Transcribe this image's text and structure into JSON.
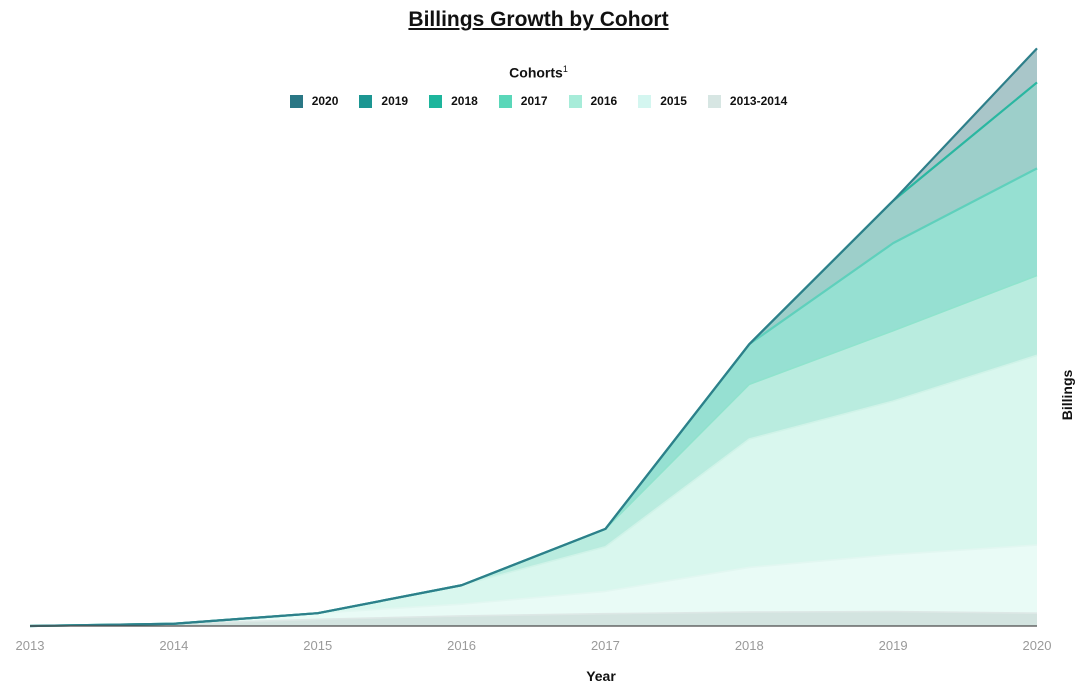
{
  "chart_data": {
    "type": "area",
    "stacked": true,
    "title": "Billings Growth by Cohort",
    "legend_title": "Cohorts",
    "legend_footnote": "1",
    "xlabel": "Year",
    "ylabel": "Billings",
    "x": [
      "2013",
      "2014",
      "2015",
      "2016",
      "2017",
      "2018",
      "2019",
      "2020"
    ],
    "y_axis_shown": false,
    "grid": false,
    "legend_position": "top-center",
    "series": [
      {
        "name": "2013-2014",
        "color": "#d3e4e0",
        "values": [
          0,
          0.4,
          1.2,
          1.8,
          2.2,
          2.5,
          2.6,
          2.3
        ]
      },
      {
        "name": "2015",
        "color": "#e9fbf6",
        "values": [
          0,
          0,
          1.1,
          2.1,
          4.0,
          8.0,
          10.2,
          12.2
        ]
      },
      {
        "name": "2016",
        "color": "#d9f7ee",
        "values": [
          0,
          0,
          0,
          3.4,
          8.0,
          23.0,
          27.5,
          34.0
        ]
      },
      {
        "name": "2017",
        "color": "#b9ecdf",
        "values": [
          0,
          0,
          0,
          0,
          3.2,
          9.8,
          12.6,
          14.3
        ]
      },
      {
        "name": "2018",
        "color": "#96e0d2",
        "values": [
          0,
          0,
          0,
          0,
          0,
          7.2,
          15.7,
          19.2
        ]
      },
      {
        "name": "2019",
        "color": "#9dcfca",
        "values": [
          0,
          0,
          0,
          0,
          0,
          0,
          7.6,
          15.4
        ]
      },
      {
        "name": "2020",
        "color": "#a9c6c9",
        "values": [
          0,
          0,
          0,
          0,
          0,
          0,
          0,
          6.1
        ]
      }
    ],
    "legend_order": [
      "2020",
      "2019",
      "2018",
      "2017",
      "2016",
      "2015",
      "2013-2014"
    ],
    "legend_colors": {
      "2020": "#2a7785",
      "2019": "#1c9692",
      "2018": "#1db59c",
      "2017": "#5ad7b9",
      "2016": "#a7ecd9",
      "2015": "#d4f6f0",
      "2013-2014": "#d7e6e3"
    },
    "line_colors": {
      "2013-2014": "#dde8e6",
      "2015": "#e2f7f1",
      "2016": "#d0f3e8",
      "2017": "#8fe3cd",
      "2018": "#5fd0bc",
      "2019": "#2ab7a1",
      "2020": "#2e7f8a"
    },
    "baseline_color": "#4b4b4b",
    "ylim": [
      0,
      105
    ]
  }
}
